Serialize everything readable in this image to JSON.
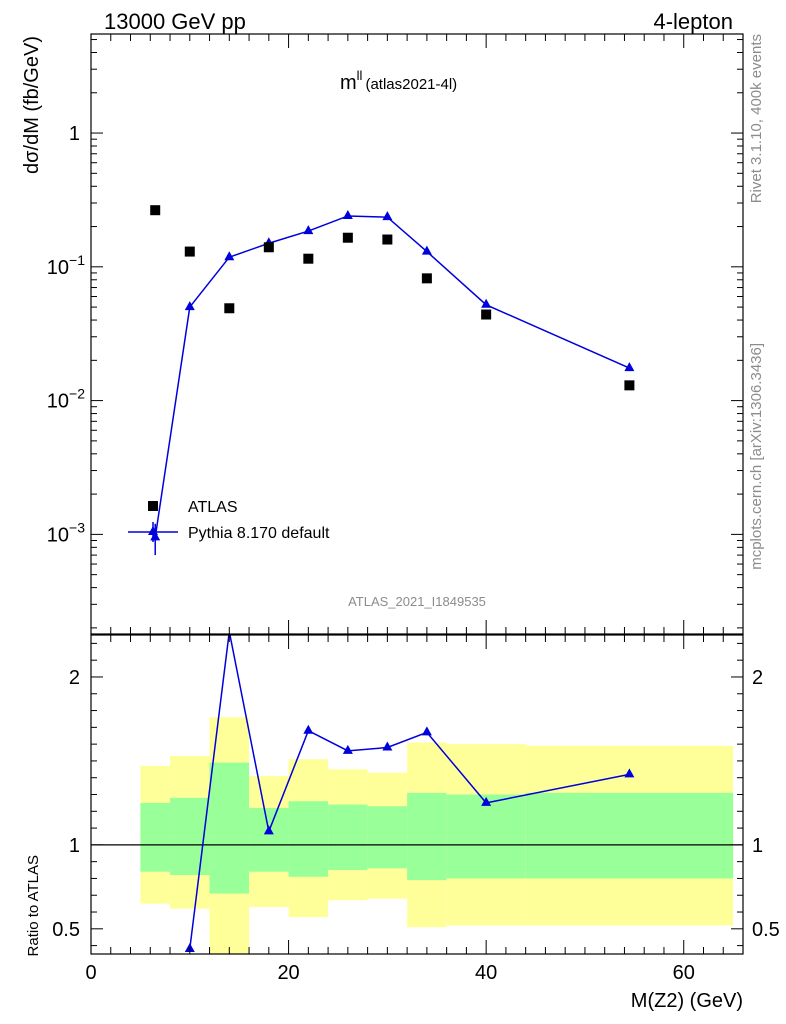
{
  "header": {
    "left": "13000 GeV pp",
    "right": "4-lepton"
  },
  "side_labels": {
    "rivet": "Rivet 3.1.10,  400k events",
    "mcplots": "mcplots.cern.ch [arXiv:1306.3436]"
  },
  "colors": {
    "mc": "#0000dd",
    "data": "#000000",
    "band_inner": "#99ff99",
    "band_outer": "#ffff99",
    "grey": "#8c8c8c"
  },
  "chart_data": [
    {
      "type": "scatter",
      "panel": "main",
      "title": "m",
      "title_sup": "ll",
      "title_sub": "(atlas2021-4l)",
      "ylabel": "dσ/dM (fb/GeV)",
      "yscale": "log",
      "ylim": [
        0.00018,
        5.5
      ],
      "xlim": [
        0,
        66
      ],
      "yticks": [
        {
          "value": 1,
          "base": "1",
          "exp": ""
        },
        {
          "value": 0.1,
          "base": "10",
          "exp": "−1"
        },
        {
          "value": 0.01,
          "base": "10",
          "exp": "−2"
        },
        {
          "value": 0.001,
          "base": "10",
          "exp": "−3"
        }
      ],
      "watermark": "ATLAS_2021_I1849535",
      "legend": [
        {
          "label": "ATLAS",
          "marker": "square"
        },
        {
          "label": "Pythia 8.170 default",
          "marker": "triangle-line"
        }
      ],
      "series": [
        {
          "name": "ATLAS",
          "x": [
            6.5,
            10,
            14,
            18,
            22,
            26,
            30,
            34,
            40,
            54.5
          ],
          "y": [
            0.265,
            0.13,
            0.049,
            0.14,
            0.115,
            0.165,
            0.16,
            0.082,
            0.044,
            0.013
          ]
        },
        {
          "name": "Pythia 8.170 default",
          "x": [
            6.5,
            10,
            14,
            18,
            22,
            26,
            30,
            34,
            40,
            54.5
          ],
          "y": [
            0.00095,
            0.05,
            0.118,
            0.15,
            0.185,
            0.24,
            0.235,
            0.13,
            0.052,
            0.0175
          ],
          "y_err_low": [
            0.00025,
            0,
            0,
            0,
            0,
            0,
            0,
            0,
            0,
            0
          ],
          "y_err_high": [
            0.00025,
            0,
            0,
            0,
            0,
            0,
            0,
            0,
            0,
            0
          ]
        }
      ]
    },
    {
      "type": "line",
      "panel": "ratio",
      "ylabel": "Ratio to ATLAS",
      "xlabel": "M(Z2) (GeV)",
      "xlim": [
        0,
        66
      ],
      "ylim": [
        0.35,
        2.25
      ],
      "xticks": [
        0,
        20,
        40,
        60
      ],
      "yticks": [
        0.5,
        1,
        2
      ],
      "reference_line": 1,
      "bands": [
        {
          "xlo": 5,
          "xhi": 8,
          "inner": [
            0.84,
            1.25
          ],
          "outer": [
            0.65,
            1.47
          ]
        },
        {
          "xlo": 8,
          "xhi": 12,
          "inner": [
            0.82,
            1.28
          ],
          "outer": [
            0.62,
            1.53
          ]
        },
        {
          "xlo": 12,
          "xhi": 16,
          "inner": [
            0.71,
            1.49
          ],
          "outer": [
            0.34,
            1.76
          ]
        },
        {
          "xlo": 16,
          "xhi": 20,
          "inner": [
            0.84,
            1.22
          ],
          "outer": [
            0.63,
            1.41
          ]
        },
        {
          "xlo": 20,
          "xhi": 24,
          "inner": [
            0.81,
            1.26
          ],
          "outer": [
            0.57,
            1.51
          ]
        },
        {
          "xlo": 24,
          "xhi": 28,
          "inner": [
            0.85,
            1.24
          ],
          "outer": [
            0.67,
            1.45
          ]
        },
        {
          "xlo": 28,
          "xhi": 32,
          "inner": [
            0.86,
            1.23
          ],
          "outer": [
            0.68,
            1.43
          ]
        },
        {
          "xlo": 32,
          "xhi": 36,
          "inner": [
            0.79,
            1.31
          ],
          "outer": [
            0.51,
            1.61
          ]
        },
        {
          "xlo": 36,
          "xhi": 44,
          "inner": [
            0.8,
            1.3
          ],
          "outer": [
            0.52,
            1.6
          ]
        },
        {
          "xlo": 44,
          "xhi": 65,
          "inner": [
            0.8,
            1.31
          ],
          "outer": [
            0.52,
            1.59
          ]
        }
      ],
      "series": [
        {
          "name": "Pythia 8.170 default / ATLAS",
          "x": [
            10,
            14,
            18,
            22,
            26,
            30,
            34,
            40,
            54.5
          ],
          "y": [
            0.38,
            2.27,
            1.08,
            1.68,
            1.56,
            1.58,
            1.67,
            1.25,
            1.42
          ]
        }
      ]
    }
  ]
}
